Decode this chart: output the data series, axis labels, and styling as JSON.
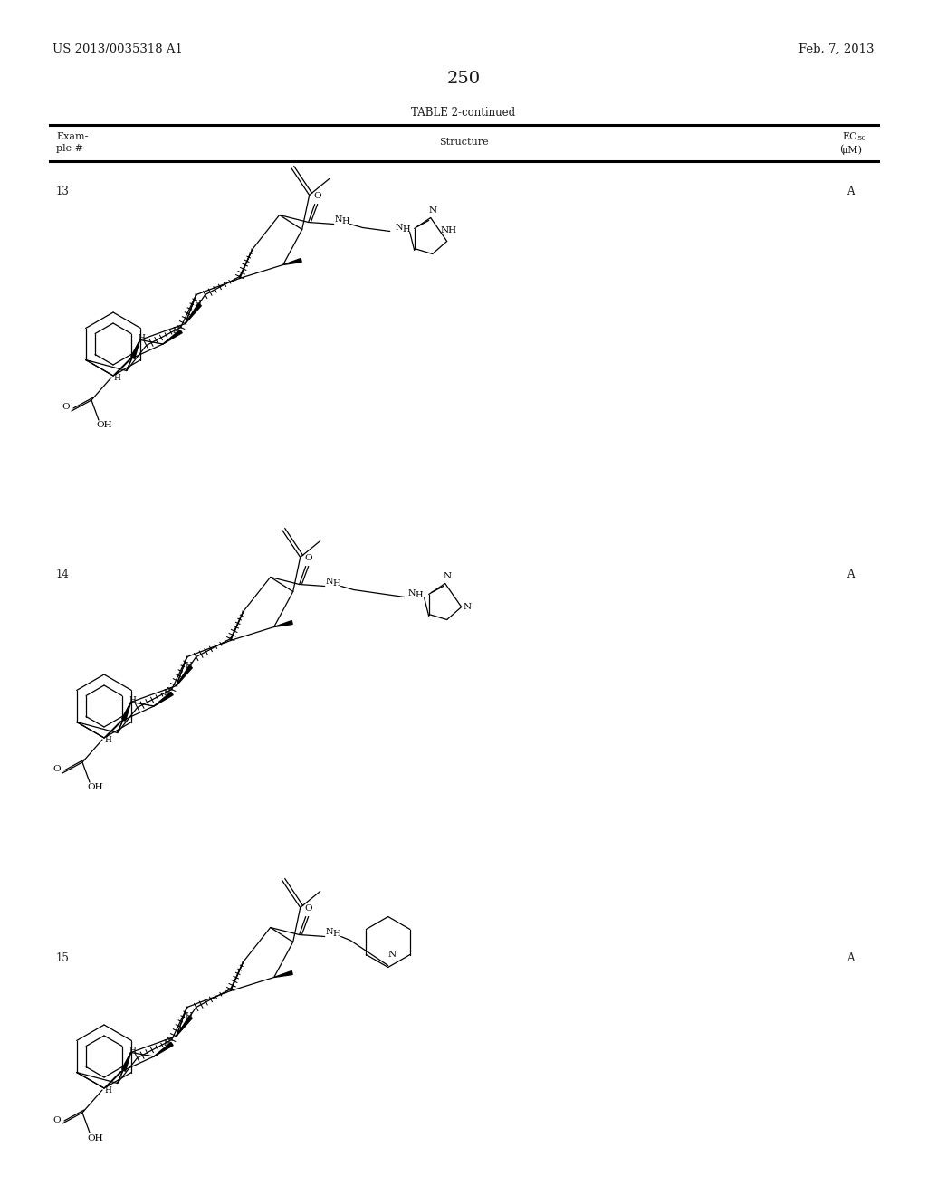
{
  "page_number": "250",
  "patent_number": "US 2013/0035318 A1",
  "patent_date": "Feb. 7, 2013",
  "table_title": "TABLE 2-continued",
  "col1_header_line1": "Exam-",
  "col1_header_line2": "ple #",
  "col2_header": "Structure",
  "col3_header_line1": "EC",
  "col3_header_sub": "50",
  "col3_header_line2": "(μM)",
  "rows": [
    {
      "example": "13",
      "ec50": "A",
      "oy": 350
    },
    {
      "example": "14",
      "ec50": "A",
      "oy": 763
    },
    {
      "example": "15",
      "ec50": "A",
      "oy": 1155
    }
  ],
  "background_color": "#ffffff",
  "text_color": "#1a1a1a",
  "line_color": "#000000"
}
